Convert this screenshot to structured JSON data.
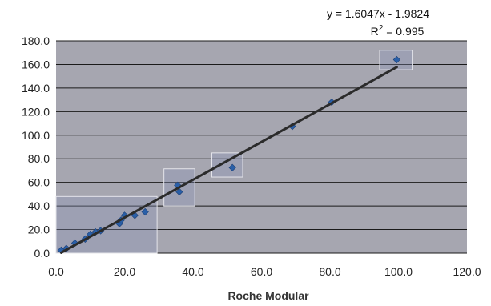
{
  "chart_data": {
    "type": "scatter",
    "title": "",
    "xlabel": "Roche Modular",
    "ylabel": "",
    "xlim": [
      0,
      120
    ],
    "ylim": [
      0,
      180
    ],
    "x_ticks": [
      "0.0",
      "20.0",
      "40.0",
      "60.0",
      "80.0",
      "100.0",
      "120.0"
    ],
    "y_ticks": [
      "0.0",
      "20.0",
      "40.0",
      "60.0",
      "80.0",
      "100.0",
      "120.0",
      "140.0",
      "160.0",
      "180.0"
    ],
    "grid": "horizontal",
    "plot_background": "#a6a6b0",
    "marker_color": "#2a5fa8",
    "trendline_color": "#2b2b2b",
    "series": [
      {
        "points": [
          [
            1.5,
            2.5
          ],
          [
            3.0,
            4.0
          ],
          [
            5.5,
            8.5
          ],
          [
            8.5,
            12.0
          ],
          [
            10.0,
            16.0
          ],
          [
            11.5,
            18.0
          ],
          [
            13.0,
            19.0
          ],
          [
            18.5,
            25.0
          ],
          [
            19.0,
            28.0
          ],
          [
            20.0,
            32.0
          ],
          [
            23.0,
            32.0
          ],
          [
            26.0,
            35.0
          ],
          [
            35.5,
            57.5
          ],
          [
            36.0,
            52.0
          ],
          [
            51.5,
            72.5
          ],
          [
            69.0,
            107.5
          ],
          [
            80.5,
            128.0
          ],
          [
            99.5,
            164.0
          ]
        ]
      }
    ],
    "trendline": {
      "slope": 1.6047,
      "intercept": -1.9824,
      "x_range": [
        1.5,
        99.5
      ],
      "equation_text": "y = 1.6047x - 1.9824",
      "r2_prefix": "R",
      "r2_sup": "2",
      "r2_suffix": " = 0.995"
    },
    "highlight_boxes": [
      {
        "x": [
          0.0,
          29.5
        ],
        "y": [
          0.0,
          48.0
        ]
      },
      {
        "x": [
          31.5,
          40.5
        ],
        "y": [
          40.0,
          71.5
        ]
      },
      {
        "x": [
          45.5,
          54.5
        ],
        "y": [
          64.5,
          85.0
        ]
      },
      {
        "x": [
          94.5,
          104.0
        ],
        "y": [
          155.5,
          172.0
        ]
      }
    ]
  }
}
